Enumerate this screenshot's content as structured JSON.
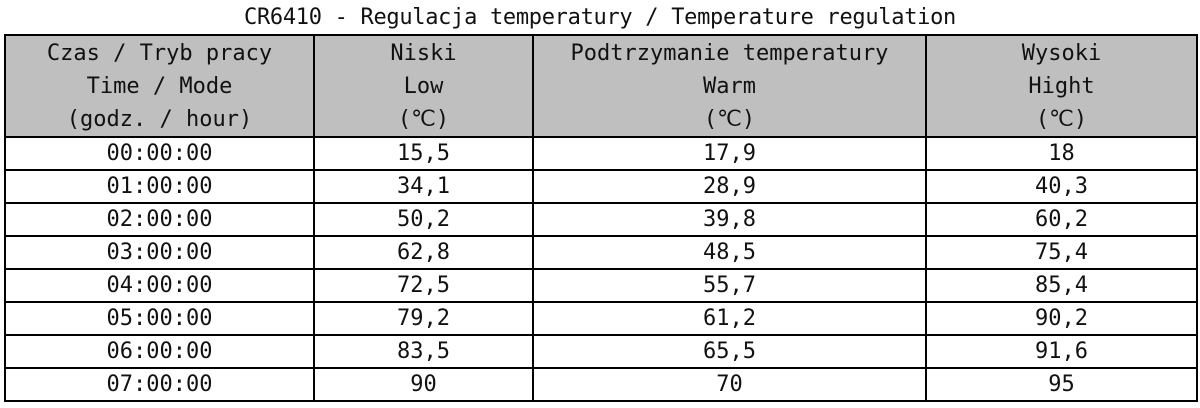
{
  "title": "CR6410 - Regulacja temperatury / Temperature regulation",
  "columns": [
    {
      "line1": "Czas / Tryb pracy",
      "line2": "Time / Mode",
      "line3": "(godz. / hour)"
    },
    {
      "line1": "Niski",
      "line2": "Low",
      "line3": "(℃)"
    },
    {
      "line1": "Podtrzymanie temperatury",
      "line2": "Warm",
      "line3": "(℃)"
    },
    {
      "line1": "Wysoki",
      "line2": "Hight",
      "line3": "(℃)"
    }
  ],
  "rows": [
    [
      "00:00:00",
      "15,5",
      "17,9",
      "18"
    ],
    [
      "01:00:00",
      "34,1",
      "28,9",
      "40,3"
    ],
    [
      "02:00:00",
      "50,2",
      "39,8",
      "60,2"
    ],
    [
      "03:00:00",
      "62,8",
      "48,5",
      "75,4"
    ],
    [
      "04:00:00",
      "72,5",
      "55,7",
      "85,4"
    ],
    [
      "05:00:00",
      "79,2",
      "61,2",
      "90,2"
    ],
    [
      "06:00:00",
      "83,5",
      "65,5",
      "91,6"
    ],
    [
      "07:00:00",
      "90",
      "70",
      "95"
    ]
  ]
}
